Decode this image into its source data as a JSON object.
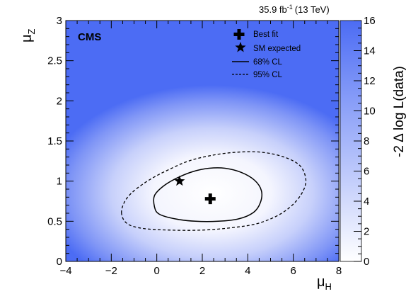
{
  "chart_data": {
    "type": "heatmap",
    "experiment": "CMS",
    "luminosity": {
      "value": "35.9 fb",
      "exponent": "-1",
      "energy": "(13 TeV)"
    },
    "xlabel": {
      "base": "μ",
      "sub": "H"
    },
    "ylabel": {
      "base": "μ",
      "sub": "Z"
    },
    "zlabel": "-2 Δ log L(data)",
    "xlim": [
      -4,
      8
    ],
    "ylim": [
      0,
      3
    ],
    "zlim": [
      0,
      16
    ],
    "x_ticks": [
      "−4",
      "−2",
      "0",
      "2",
      "4",
      "6",
      "8"
    ],
    "x_tick_values": [
      -4,
      -2,
      0,
      2,
      4,
      6,
      8
    ],
    "y_ticks": [
      "0",
      "0.5",
      "1",
      "1.5",
      "2",
      "2.5",
      "3"
    ],
    "y_tick_values": [
      0,
      0.5,
      1,
      1.5,
      2,
      2.5,
      3
    ],
    "z_ticks": [
      "0",
      "2",
      "4",
      "6",
      "8",
      "10",
      "12",
      "14",
      "16"
    ],
    "z_tick_values": [
      0,
      2,
      4,
      6,
      8,
      10,
      12,
      14,
      16
    ],
    "colormap": {
      "low": "#ffffff",
      "high": "#4c6cf4"
    },
    "best_fit": {
      "x": 2.35,
      "y": 0.78
    },
    "sm_expected": {
      "x": 1.0,
      "y": 1.0
    },
    "contours": [
      {
        "name": "68% CL",
        "style": "solid",
        "points": [
          [
            -0.1,
            0.82
          ],
          [
            0.3,
            0.94
          ],
          [
            0.9,
            1.04
          ],
          [
            1.6,
            1.12
          ],
          [
            2.3,
            1.16
          ],
          [
            3.0,
            1.16
          ],
          [
            3.7,
            1.11
          ],
          [
            4.3,
            1.01
          ],
          [
            4.6,
            0.88
          ],
          [
            4.55,
            0.73
          ],
          [
            4.25,
            0.61
          ],
          [
            3.6,
            0.53
          ],
          [
            2.7,
            0.5
          ],
          [
            1.7,
            0.5
          ],
          [
            0.8,
            0.53
          ],
          [
            0.1,
            0.59
          ],
          [
            -0.1,
            0.68
          ]
        ]
      },
      {
        "name": "95% CL",
        "style": "dashed",
        "points": [
          [
            -1.55,
            0.6
          ],
          [
            -1.4,
            0.75
          ],
          [
            -1.0,
            0.88
          ],
          [
            -0.3,
            1.02
          ],
          [
            0.5,
            1.14
          ],
          [
            1.4,
            1.25
          ],
          [
            2.4,
            1.32
          ],
          [
            3.5,
            1.36
          ],
          [
            4.6,
            1.36
          ],
          [
            5.6,
            1.3
          ],
          [
            6.3,
            1.19
          ],
          [
            6.55,
            1.02
          ],
          [
            6.4,
            0.86
          ],
          [
            5.95,
            0.7
          ],
          [
            5.3,
            0.57
          ],
          [
            4.4,
            0.47
          ],
          [
            3.3,
            0.42
          ],
          [
            2.0,
            0.39
          ],
          [
            0.6,
            0.39
          ],
          [
            -0.6,
            0.41
          ],
          [
            -1.3,
            0.47
          ]
        ]
      }
    ]
  },
  "legend": {
    "items": [
      {
        "label": "Best fit",
        "marker": "cross"
      },
      {
        "label": "SM expected",
        "marker": "star"
      },
      {
        "label": "68% CL",
        "marker": "solid-line"
      },
      {
        "label": "95% CL",
        "marker": "dashed-line"
      }
    ]
  }
}
